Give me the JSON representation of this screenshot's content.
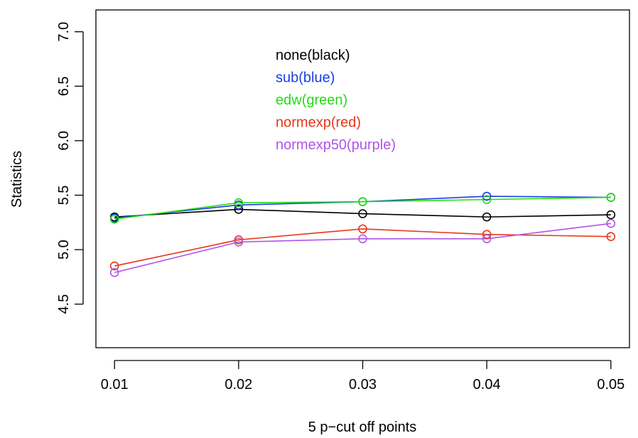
{
  "chart_data": {
    "type": "line",
    "title": "",
    "xlabel": "5 p−cut off points",
    "ylabel": "Statistics",
    "x": [
      0.01,
      0.02,
      0.03,
      0.04,
      0.05
    ],
    "x_tick_labels": [
      "0.01",
      "0.02",
      "0.03",
      "0.04",
      "0.05"
    ],
    "y_ticks": [
      4.5,
      5.0,
      5.5,
      6.0,
      6.5,
      7.0
    ],
    "y_tick_labels": [
      "4.5",
      "5.0",
      "5.5",
      "6.0",
      "6.5",
      "7.0"
    ],
    "xlim": [
      0.0085,
      0.0515
    ],
    "ylim": [
      4.1,
      7.2
    ],
    "grid": false,
    "legend_position": "top-center",
    "series": [
      {
        "name": "none(black)",
        "color": "#000000",
        "values": [
          5.3,
          5.37,
          5.33,
          5.3,
          5.32
        ]
      },
      {
        "name": "sub(blue)",
        "color": "#1a3ee8",
        "values": [
          5.29,
          5.41,
          5.44,
          5.49,
          5.48
        ]
      },
      {
        "name": "edw(green)",
        "color": "#22dd11",
        "values": [
          5.28,
          5.43,
          5.44,
          5.46,
          5.48
        ]
      },
      {
        "name": "normexp(red)",
        "color": "#e8361a",
        "values": [
          4.85,
          5.09,
          5.19,
          5.14,
          5.12
        ]
      },
      {
        "name": "normexp50(purple)",
        "color": "#b054e8",
        "values": [
          4.79,
          5.07,
          5.1,
          5.1,
          5.24
        ]
      }
    ]
  }
}
